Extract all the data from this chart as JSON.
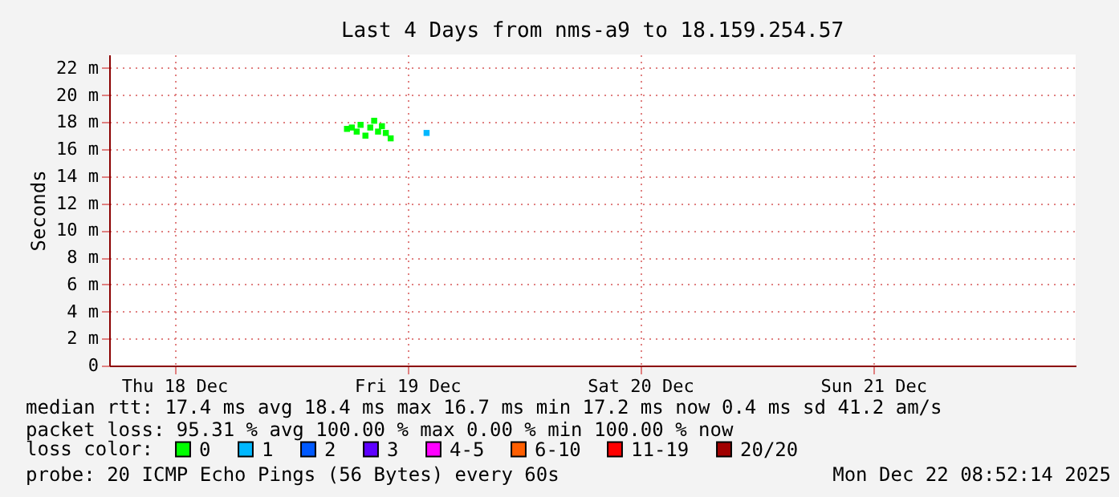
{
  "chart_data": {
    "type": "scatter",
    "title": "Last 4 Days from nms-a9 to 18.159.254.57",
    "ylabel": "Seconds",
    "legend_title": "loss color:",
    "xlim": [
      "2025-12-18T05:18",
      "2025-12-22T08:52"
    ],
    "xticks": [
      {
        "value": "2025-12-18T12:00",
        "label": "Thu 18 Dec"
      },
      {
        "value": "2025-12-19T12:00",
        "label": "Fri 19 Dec"
      },
      {
        "value": "2025-12-20T12:00",
        "label": "Sat 20 Dec"
      },
      {
        "value": "2025-12-21T12:00",
        "label": "Sun 21 Dec"
      }
    ],
    "ylim": [
      0,
      23
    ],
    "yticks": [
      {
        "value": 0,
        "label": "0"
      },
      {
        "value": 2,
        "label": "2 m"
      },
      {
        "value": 4,
        "label": "4 m"
      },
      {
        "value": 6,
        "label": "6 m"
      },
      {
        "value": 8,
        "label": "8 m"
      },
      {
        "value": 10,
        "label": "10 m"
      },
      {
        "value": 12,
        "label": "12 m"
      },
      {
        "value": 14,
        "label": "14 m"
      },
      {
        "value": 16,
        "label": "16 m"
      },
      {
        "value": 18,
        "label": "18 m"
      },
      {
        "value": 20,
        "label": "20 m"
      },
      {
        "value": 22,
        "label": "22 m"
      }
    ],
    "grid": true,
    "legend": "bottom",
    "marker": "square",
    "series": [
      {
        "name": "0",
        "color": "#00ff00",
        "x": [
          "2025-12-19T05:48",
          "2025-12-19T06:18",
          "2025-12-19T06:48",
          "2025-12-19T07:12",
          "2025-12-19T07:42",
          "2025-12-19T08:12",
          "2025-12-19T08:36",
          "2025-12-19T09:00",
          "2025-12-19T09:24",
          "2025-12-19T09:48",
          "2025-12-19T10:18"
        ],
        "values": [
          17.5,
          17.6,
          17.3,
          17.8,
          17.0,
          17.6,
          18.1,
          17.3,
          17.7,
          17.2,
          16.8
        ]
      },
      {
        "name": "1",
        "color": "#00b8ff",
        "x": [
          "2025-12-19T14:00"
        ],
        "values": [
          17.2
        ]
      },
      {
        "name": "2",
        "color": "#0059ff"
      },
      {
        "name": "3",
        "color": "#5e00ff"
      },
      {
        "name": "4-5",
        "color": "#ff00ff"
      },
      {
        "name": "6-10",
        "color": "#ff5e00"
      },
      {
        "name": "11-19",
        "color": "#ff0000"
      },
      {
        "name": "20/20",
        "color": "#a10000"
      }
    ],
    "annotations": [
      "median rtt:  17.4 ms avg  18.4 ms max  16.7 ms min  17.2 ms now  0.4 ms sd  41.2   am/s",
      "packet loss: 95.31 % avg  100.00 % max  0.00 % min  100.00 % now",
      "probe:       20 ICMP Echo Pings (56 Bytes) every 60s",
      "Mon Dec 22 08:52:14 2025"
    ]
  }
}
